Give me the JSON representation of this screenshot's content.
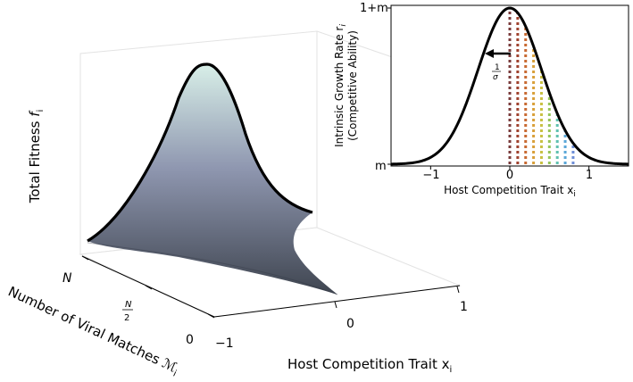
{
  "chart_data": [
    {
      "type": "surface",
      "zlabel_text": "Total Fitness",
      "zlabel_symbol": "f",
      "zlabel_sub": "i",
      "xlabel_text": "Host Competition Trait x",
      "xlabel_sub": "i",
      "ylabel_text": "Number of Viral Matches ",
      "ylabel_symbol": "ℳ",
      "ylabel_sub": "i",
      "x_ticks": [
        "−1",
        "0",
        "1"
      ],
      "y_ticks": [
        "0",
        "N",
        "N"
      ],
      "y_tick_half_denominator": "2",
      "surface_colors": {
        "top": "#d8efe8",
        "mid": "#8f97b0",
        "base": "#3f4550"
      },
      "peak_at_x": 0
    },
    {
      "type": "line",
      "ylabel_text": "Intrinsic Growth Rate r",
      "ylabel_sub": "i",
      "ylabel2": "(Competitive Ability)",
      "xlabel_text": "Host Competition Trait x",
      "xlabel_sub": "i",
      "x_ticks": [
        "−1",
        "0",
        "1"
      ],
      "y_ticks": [
        "m",
        "1+m"
      ],
      "xlim": [
        -1.5,
        1.5
      ],
      "annotation_num": "1",
      "annotation_den": "σ",
      "curve": {
        "center": 0,
        "sigma": 0.4
      },
      "dotted_lines_x": [
        0.0,
        0.1,
        0.2,
        0.3,
        0.4,
        0.5,
        0.6,
        0.7,
        0.8
      ],
      "dotted_colors": [
        "#7a3b3b",
        "#a0422f",
        "#c86a32",
        "#d9a03a",
        "#c9c144",
        "#95c45a",
        "#5fc0b0",
        "#5aa7d8",
        "#6f8fd8"
      ]
    }
  ]
}
